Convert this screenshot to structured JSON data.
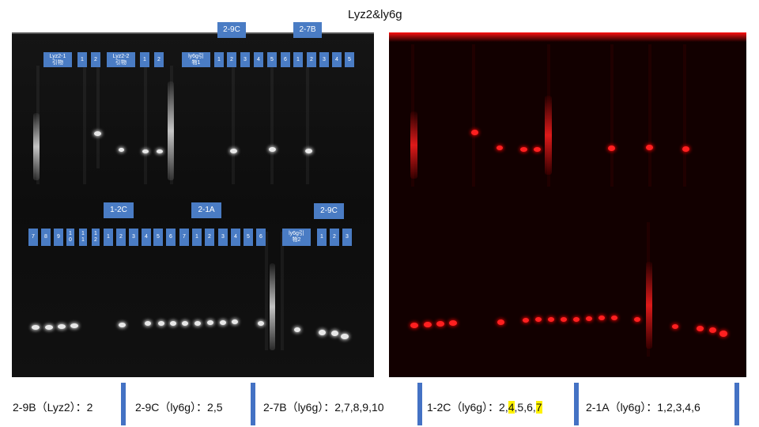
{
  "title": "Lyz2&ly6g",
  "gel_labels": {
    "top_row": [
      "Lyz2-1\n引物",
      "1",
      "2",
      "Lyz2-2\n引物",
      "1",
      "2",
      "ly6g引\n物1",
      "1",
      "2",
      "3",
      "4",
      "5",
      "6",
      "1",
      "2",
      "3",
      "4",
      "5"
    ],
    "top_groups": [
      "2-9C",
      "2-7B"
    ],
    "bottom_groups": [
      "1-2C",
      "2-1A",
      "2-9C"
    ],
    "bottom_row": [
      "7",
      "8",
      "9",
      "1\n0",
      "1\n1",
      "1\n2",
      "1",
      "2",
      "3",
      "4",
      "5",
      "6",
      "7",
      "1",
      "2",
      "3",
      "4",
      "5",
      "6",
      "ly6g引\n物2",
      "1",
      "2",
      "3"
    ]
  },
  "results": [
    {
      "label": "2-9B（Lyz2）：",
      "value": "2"
    },
    {
      "label": "2-9C（ly6g）：",
      "value": "2,5"
    },
    {
      "label": "2-7B（ly6g）：",
      "value": "2,7,8,9,10"
    },
    {
      "label": "1-2C（ly6g）：",
      "v1": "2,",
      "v2": "4",
      "v3": ",5,6,",
      "v4": "7"
    },
    {
      "label": "2-1A（ly6g）：",
      "value": "1,2,3,4,6"
    }
  ],
  "colors": {
    "label_bg": "#4a7cc4",
    "separator": "#4472c4",
    "highlight": "#fff200",
    "band_red": "#ff2020"
  }
}
